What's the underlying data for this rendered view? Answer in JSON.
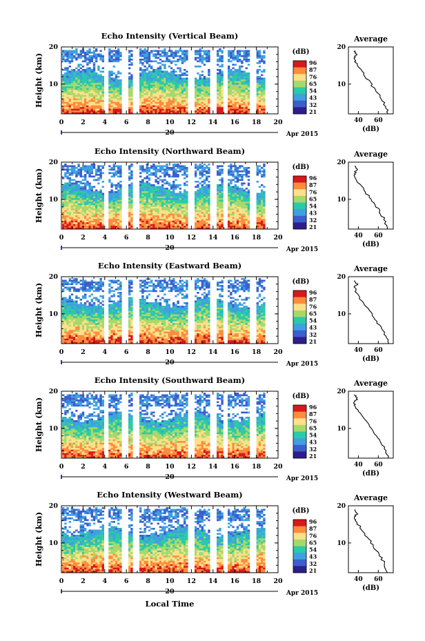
{
  "figure": {
    "xlabel": "Local Time",
    "date_label": "Apr 2015",
    "day_label": "20",
    "xticks": [
      "0",
      "2",
      "4",
      "6",
      "8",
      "10",
      "12",
      "14",
      "16",
      "18",
      "20"
    ],
    "yticks": [
      "20",
      "10"
    ],
    "ylabel": "Height (km)",
    "colorbar_unit": "(dB)",
    "colorbar_ticks": [
      "96",
      "87",
      "76",
      "65",
      "54",
      "43",
      "32",
      "21"
    ],
    "colorbar_colors": [
      "#d7191c",
      "#fd8d3c",
      "#fee08b",
      "#a6d96a",
      "#2bcaa8",
      "#3fa0e0",
      "#3a5fcd",
      "#2c1f8a"
    ],
    "avg_title": "Average",
    "avg_xticks": [
      "40",
      "60"
    ],
    "avg_yticks": [
      "20",
      "10"
    ],
    "avg_xlabel": "(dB)"
  },
  "panels": [
    {
      "title": "Echo Intensity (Vertical Beam)",
      "avg_title": "Average"
    },
    {
      "title": "Echo Intensity (Northward Beam)",
      "avg_title": "Average"
    },
    {
      "title": "Echo Intensity (Eastward Beam)",
      "avg_title": "Average"
    },
    {
      "title": "Echo Intensity (Southward Beam)",
      "avg_title": "Average"
    },
    {
      "title": "Echo Intensity (Westward Beam)",
      "avg_title": "Average"
    }
  ],
  "chart_data": [
    {
      "type": "heatmap",
      "title": "Echo Intensity (Vertical Beam)",
      "xlabel": "Local Time",
      "ylabel": "Height (km)",
      "xlim": [
        0,
        20
      ],
      "ylim": [
        2,
        20
      ],
      "colorbar_label": "(dB)",
      "colorbar_range": [
        21,
        96
      ],
      "data_gaps_hours": [
        [
          3.8,
          4.2
        ],
        [
          5.6,
          6.1
        ],
        [
          6.6,
          7.0
        ],
        [
          11.7,
          12.1
        ],
        [
          13.7,
          14.2
        ],
        [
          14.9,
          15.3
        ],
        [
          17.4,
          17.9
        ]
      ],
      "data_end_hour": 18.7
    },
    {
      "type": "heatmap",
      "title": "Echo Intensity (Northward Beam)",
      "xlabel": "Local Time",
      "ylabel": "Height (km)",
      "xlim": [
        0,
        20
      ],
      "ylim": [
        2,
        20
      ],
      "colorbar_label": "(dB)",
      "colorbar_range": [
        21,
        96
      ]
    },
    {
      "type": "heatmap",
      "title": "Echo Intensity (Eastward Beam)",
      "xlabel": "Local Time",
      "ylabel": "Height (km)",
      "xlim": [
        0,
        20
      ],
      "ylim": [
        2,
        20
      ],
      "colorbar_label": "(dB)",
      "colorbar_range": [
        21,
        96
      ]
    },
    {
      "type": "heatmap",
      "title": "Echo Intensity (Southward Beam)",
      "xlabel": "Local Time",
      "ylabel": "Height (km)",
      "xlim": [
        0,
        20
      ],
      "ylim": [
        2,
        20
      ],
      "colorbar_label": "(dB)",
      "colorbar_range": [
        21,
        96
      ]
    },
    {
      "type": "heatmap",
      "title": "Echo Intensity (Westward Beam)",
      "xlabel": "Local Time",
      "ylabel": "Height (km)",
      "xlim": [
        0,
        20
      ],
      "ylim": [
        2,
        20
      ],
      "colorbar_label": "(dB)",
      "colorbar_range": [
        21,
        96
      ]
    },
    {
      "type": "line",
      "title": "Average",
      "xlabel": "(dB)",
      "ylabel": "Height (km)",
      "series": [
        {
          "x": [
            70,
            67,
            63,
            58,
            53,
            47,
            42,
            37,
            36,
            39,
            36
          ],
          "y": [
            2,
            4,
            6,
            8,
            10,
            12,
            14,
            16,
            17,
            18,
            19
          ]
        }
      ]
    }
  ]
}
